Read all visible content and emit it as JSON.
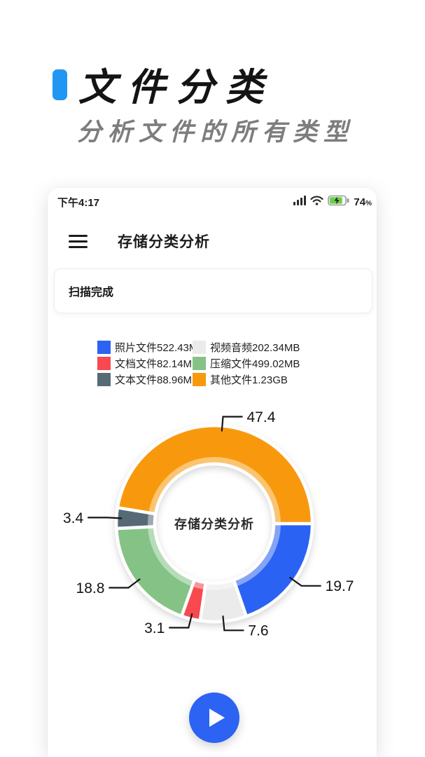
{
  "header": {
    "title": "文件分类",
    "subtitle": "分析文件的所有类型",
    "accent_color": "#2196F3"
  },
  "status_bar": {
    "time": "下午4:17",
    "battery_level": "74",
    "battery_unit": "%",
    "icons": [
      "signal-bars-icon",
      "wifi-icon",
      "battery-charging-icon"
    ],
    "battery_fill_color": "#6ECE4A"
  },
  "app_bar": {
    "title": "存储分类分析",
    "menu_icon": "hamburger-icon"
  },
  "scan_card": {
    "text": "扫描完成"
  },
  "chart_data": {
    "type": "pie",
    "subtype": "donut",
    "title": "存储分类分析",
    "start_angle_deg": 0,
    "direction": "clockwise",
    "inner_radius_ratio": 0.61,
    "value_unit": "percent",
    "legend_position": "top",
    "series": [
      {
        "label": "照片文件522.43MB",
        "percent": 19.7,
        "color": "#2C63F3"
      },
      {
        "label": "视频音频202.34MB",
        "percent": 7.6,
        "color": "#EBEBEB"
      },
      {
        "label": "文档文件82.14MB",
        "percent": 3.1,
        "color": "#F7494F"
      },
      {
        "label": "压缩文件499.02MB",
        "percent": 18.8,
        "color": "#84C385"
      },
      {
        "label": "文本文件88.96MB",
        "percent": 3.4,
        "color": "#566B76"
      },
      {
        "label": "其他文件1.23GB",
        "percent": 47.4,
        "color": "#F8990D"
      }
    ]
  },
  "fab": {
    "color": "#2C63F3",
    "icon": "play-icon"
  }
}
